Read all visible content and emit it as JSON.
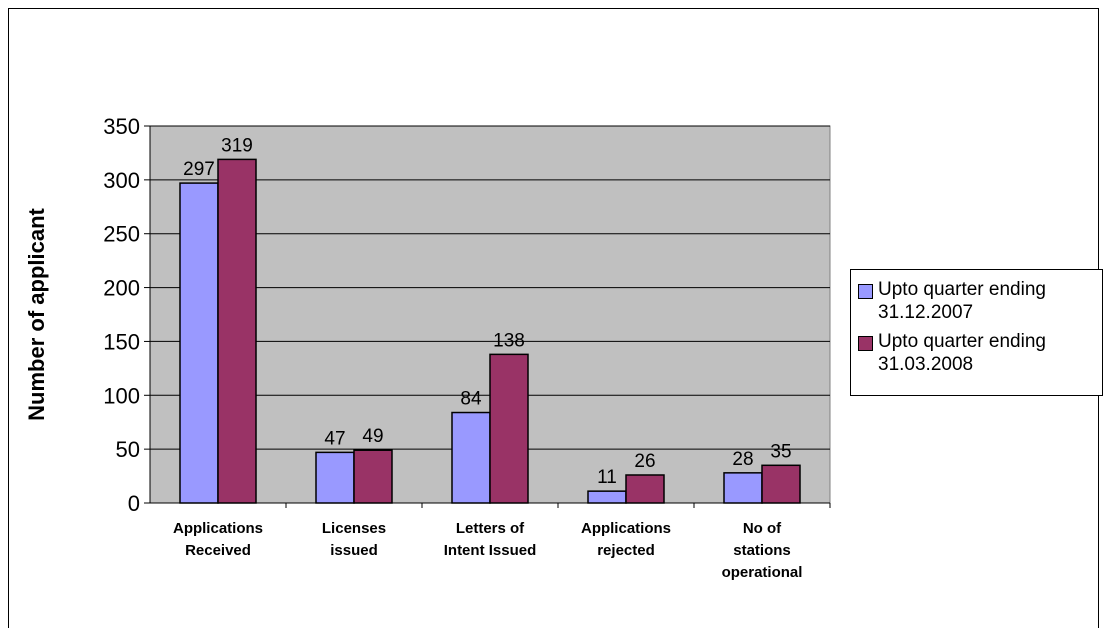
{
  "chart_data": {
    "type": "bar",
    "title": "",
    "xlabel": "",
    "ylabel": "Number of applicant",
    "ylim": [
      0,
      350
    ],
    "yticks": [
      0,
      50,
      100,
      150,
      200,
      250,
      300,
      350
    ],
    "grid": true,
    "legend_position": "right",
    "categories": [
      [
        "Applications",
        "Received"
      ],
      [
        "Licenses",
        "issued"
      ],
      [
        "Letters of",
        "Intent Issued"
      ],
      [
        "Applications",
        "rejected"
      ],
      [
        "No of",
        "stations",
        "operational"
      ]
    ],
    "series": [
      {
        "name_line1": "Upto quarter ending",
        "name_line2": "31.12.2007",
        "color": "#9999ff",
        "values": [
          297,
          47,
          84,
          11,
          28
        ]
      },
      {
        "name_line1": "Upto quarter ending",
        "name_line2": "31.03.2008",
        "color": "#993366",
        "values": [
          319,
          49,
          138,
          26,
          35
        ]
      }
    ],
    "plot_background": "#c0c0c0"
  }
}
